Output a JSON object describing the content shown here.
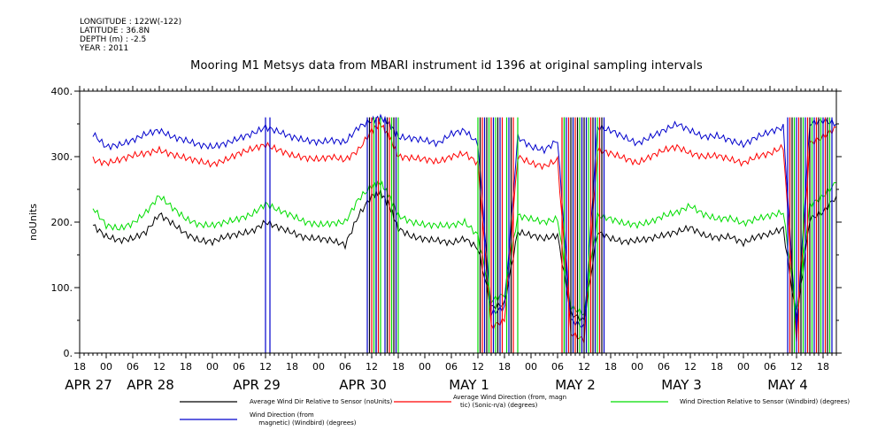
{
  "meta": {
    "longitude": "LONGITUDE : 122W(-122)",
    "latitude": "LATITUDE : 36.8N",
    "depth": "DEPTH (m) : -2.5",
    "year": "YEAR : 2011"
  },
  "chart_data": {
    "type": "line",
    "title": "Mooring M1 Metsys data from MBARI instrument id 1396 at original sampling intervals",
    "ylabel": "noUnits",
    "xlabel": "",
    "ylim": [
      0,
      400
    ],
    "y_ticks": [
      "0.",
      "100.",
      "200.",
      "300.",
      "400."
    ],
    "x_range_hours": [
      -6,
      165
    ],
    "x_tick_labels": [
      "18",
      "00",
      "06",
      "12",
      "18",
      "00",
      "06",
      "12",
      "18",
      "00",
      "06",
      "12",
      "18",
      "00",
      "06",
      "12",
      "18",
      "00",
      "06",
      "12",
      "18",
      "00",
      "06",
      "12",
      "18",
      "00",
      "06",
      "12",
      "18"
    ],
    "x_tick_hours": [
      -6,
      0,
      6,
      12,
      18,
      24,
      30,
      36,
      42,
      48,
      54,
      60,
      66,
      72,
      78,
      84,
      90,
      96,
      102,
      108,
      114,
      120,
      126,
      132,
      138,
      144,
      150,
      156,
      162
    ],
    "date_labels": [
      {
        "text": "APR 27",
        "hour": -4
      },
      {
        "text": "APR 28",
        "hour": 10
      },
      {
        "text": "APR 29",
        "hour": 34
      },
      {
        "text": "APR 30",
        "hour": 58
      },
      {
        "text": "MAY  1",
        "hour": 82
      },
      {
        "text": "MAY  2",
        "hour": 106
      },
      {
        "text": "MAY  3",
        "hour": 130
      },
      {
        "text": "MAY  4",
        "hour": 154
      }
    ],
    "grid": false,
    "legend_position": "bottom",
    "series": [
      {
        "name": "Average Wind Dir Relative to Sensor (noUnits)",
        "color": "#000000",
        "x": [
          -3,
          0,
          3,
          6,
          9,
          12,
          15,
          18,
          21,
          24,
          27,
          30,
          33,
          36,
          39,
          42,
          45,
          48,
          51,
          54,
          57,
          60,
          62,
          64,
          66,
          69,
          72,
          75,
          78,
          81,
          84,
          87,
          90,
          93,
          96,
          99,
          102,
          105,
          108,
          111,
          114,
          117,
          120,
          123,
          126,
          129,
          132,
          135,
          138,
          141,
          144,
          147,
          150,
          153,
          156,
          159,
          162,
          165
        ],
        "values": [
          195,
          178,
          172,
          175,
          185,
          212,
          198,
          182,
          172,
          170,
          178,
          182,
          186,
          200,
          192,
          184,
          176,
          175,
          172,
          165,
          210,
          240,
          245,
          225,
          190,
          178,
          174,
          172,
          168,
          175,
          160,
          70,
          75,
          185,
          180,
          175,
          180,
          60,
          50,
          185,
          175,
          170,
          172,
          175,
          180,
          185,
          192,
          180,
          176,
          178,
          168,
          178,
          182,
          190,
          50,
          205,
          215,
          240
        ]
      },
      {
        "name": "Average Wind Direction (from, magnetic) (Sonic-n/a) (degrees)",
        "color": "#ff0000",
        "x": [
          -3,
          0,
          3,
          6,
          9,
          12,
          15,
          18,
          21,
          24,
          27,
          30,
          33,
          36,
          39,
          42,
          45,
          48,
          51,
          54,
          57,
          60,
          62,
          64,
          66,
          69,
          72,
          75,
          78,
          81,
          84,
          87,
          90,
          93,
          96,
          99,
          102,
          105,
          108,
          111,
          114,
          117,
          120,
          123,
          126,
          129,
          132,
          135,
          138,
          141,
          144,
          147,
          150,
          153,
          156,
          159,
          162,
          165
        ],
        "values": [
          295,
          290,
          295,
          302,
          305,
          310,
          303,
          298,
          293,
          288,
          295,
          305,
          312,
          318,
          310,
          302,
          298,
          296,
          300,
          295,
          310,
          340,
          350,
          330,
          300,
          298,
          296,
          292,
          300,
          305,
          290,
          40,
          50,
          300,
          290,
          285,
          295,
          30,
          20,
          310,
          305,
          298,
          290,
          300,
          310,
          315,
          305,
          300,
          302,
          296,
          290,
          300,
          305,
          315,
          20,
          320,
          330,
          345
        ]
      },
      {
        "name": "Wind Direction Relative to Sensor (Windbird) (degrees)",
        "color": "#00dd00",
        "x": [
          -3,
          0,
          3,
          6,
          9,
          12,
          15,
          18,
          21,
          24,
          27,
          30,
          33,
          36,
          39,
          42,
          45,
          48,
          51,
          54,
          57,
          60,
          62,
          64,
          66,
          69,
          72,
          75,
          78,
          81,
          84,
          87,
          90,
          93,
          96,
          99,
          102,
          105,
          108,
          111,
          114,
          117,
          120,
          123,
          126,
          129,
          132,
          135,
          138,
          141,
          144,
          147,
          150,
          153,
          156,
          159,
          162,
          165
        ],
        "values": [
          222,
          195,
          190,
          198,
          215,
          240,
          222,
          205,
          196,
          195,
          200,
          205,
          212,
          228,
          218,
          210,
          200,
          196,
          198,
          200,
          235,
          255,
          260,
          240,
          210,
          200,
          196,
          195,
          195,
          200,
          180,
          80,
          90,
          210,
          205,
          200,
          205,
          70,
          60,
          210,
          205,
          198,
          196,
          200,
          210,
          215,
          225,
          212,
          205,
          206,
          198,
          205,
          210,
          215,
          60,
          225,
          240,
          260
        ]
      },
      {
        "name": "Wind Direction (from, magnetic) (Windbird) (degrees)",
        "color": "#0000cc",
        "x": [
          -3,
          0,
          3,
          6,
          9,
          12,
          15,
          18,
          21,
          24,
          27,
          30,
          33,
          36,
          39,
          42,
          45,
          48,
          51,
          54,
          57,
          60,
          62,
          64,
          66,
          69,
          72,
          75,
          78,
          81,
          84,
          87,
          90,
          93,
          96,
          99,
          102,
          105,
          108,
          111,
          114,
          117,
          120,
          123,
          126,
          129,
          132,
          135,
          138,
          141,
          144,
          147,
          150,
          153,
          156,
          159,
          162,
          165
        ],
        "values": [
          335,
          315,
          318,
          325,
          335,
          340,
          330,
          325,
          318,
          315,
          320,
          328,
          335,
          345,
          338,
          330,
          325,
          322,
          325,
          322,
          345,
          355,
          360,
          350,
          330,
          328,
          325,
          320,
          335,
          340,
          320,
          60,
          70,
          330,
          315,
          310,
          325,
          50,
          40,
          345,
          340,
          330,
          320,
          330,
          340,
          350,
          340,
          330,
          332,
          325,
          318,
          330,
          338,
          345,
          30,
          350,
          355,
          350
        ]
      }
    ],
    "spikes": [
      {
        "series": 3,
        "hours": [
          36,
          37
        ]
      },
      {
        "series": 0,
        "hours": [
          59.5,
          61,
          63.5,
          65,
          84.5,
          86,
          88.5,
          91.5,
          103.5,
          105,
          106.5,
          108,
          110,
          112,
          155,
          157,
          159,
          161,
          163
        ]
      },
      {
        "series": 1,
        "hours": [
          60,
          61.5,
          64,
          65.5,
          85,
          87,
          89.5,
          92,
          103,
          104.5,
          106,
          107.5,
          109.5,
          111.5,
          154.5,
          156.5,
          158.5,
          160.5,
          162.5
        ]
      },
      {
        "series": 2,
        "hours": [
          60.5,
          62,
          64.5,
          66,
          84,
          86.5,
          88,
          90.5,
          93,
          103.5,
          105.5,
          107,
          109,
          111,
          155.5,
          157.5,
          159.5,
          161.5,
          163.5
        ]
      },
      {
        "series": 3,
        "hours": [
          59,
          61,
          63,
          65.5,
          85.5,
          87.5,
          89,
          91,
          104,
          105.5,
          107.5,
          108.5,
          110.5,
          112.5,
          154,
          156,
          158,
          160,
          162,
          164
        ]
      }
    ]
  }
}
